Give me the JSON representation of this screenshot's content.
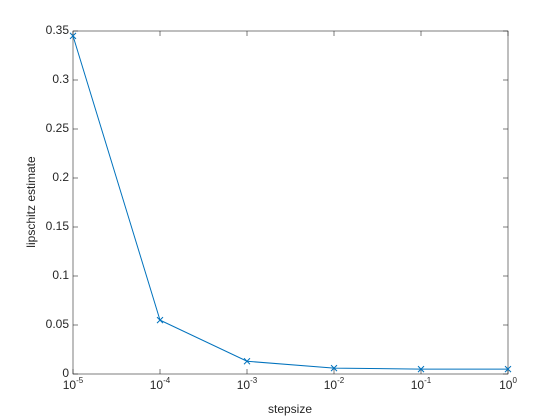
{
  "chart_data": {
    "type": "line",
    "xlabel": "stepsize",
    "ylabel": "lipschitz estimate",
    "xscale": "log",
    "x": [
      1e-05,
      0.0001,
      0.001,
      0.01,
      0.1,
      1
    ],
    "series": [
      {
        "color": "#0072bd",
        "marker": "x",
        "values": [
          0.345,
          0.055,
          0.013,
          0.006,
          0.005,
          0.005
        ]
      }
    ],
    "xlim": [
      1e-05,
      1
    ],
    "xticks": [
      {
        "value": 1e-05,
        "label": "10^-5"
      },
      {
        "value": 0.0001,
        "label": "10^-4"
      },
      {
        "value": 0.001,
        "label": "10^-3"
      },
      {
        "value": 0.01,
        "label": "10^-2"
      },
      {
        "value": 0.1,
        "label": "10^-1"
      },
      {
        "value": 1,
        "label": "10^0"
      }
    ],
    "ylim": [
      0,
      0.35
    ],
    "yticks": [
      0,
      0.05,
      0.1,
      0.15,
      0.2,
      0.25,
      0.3,
      0.35
    ],
    "grid": false
  }
}
